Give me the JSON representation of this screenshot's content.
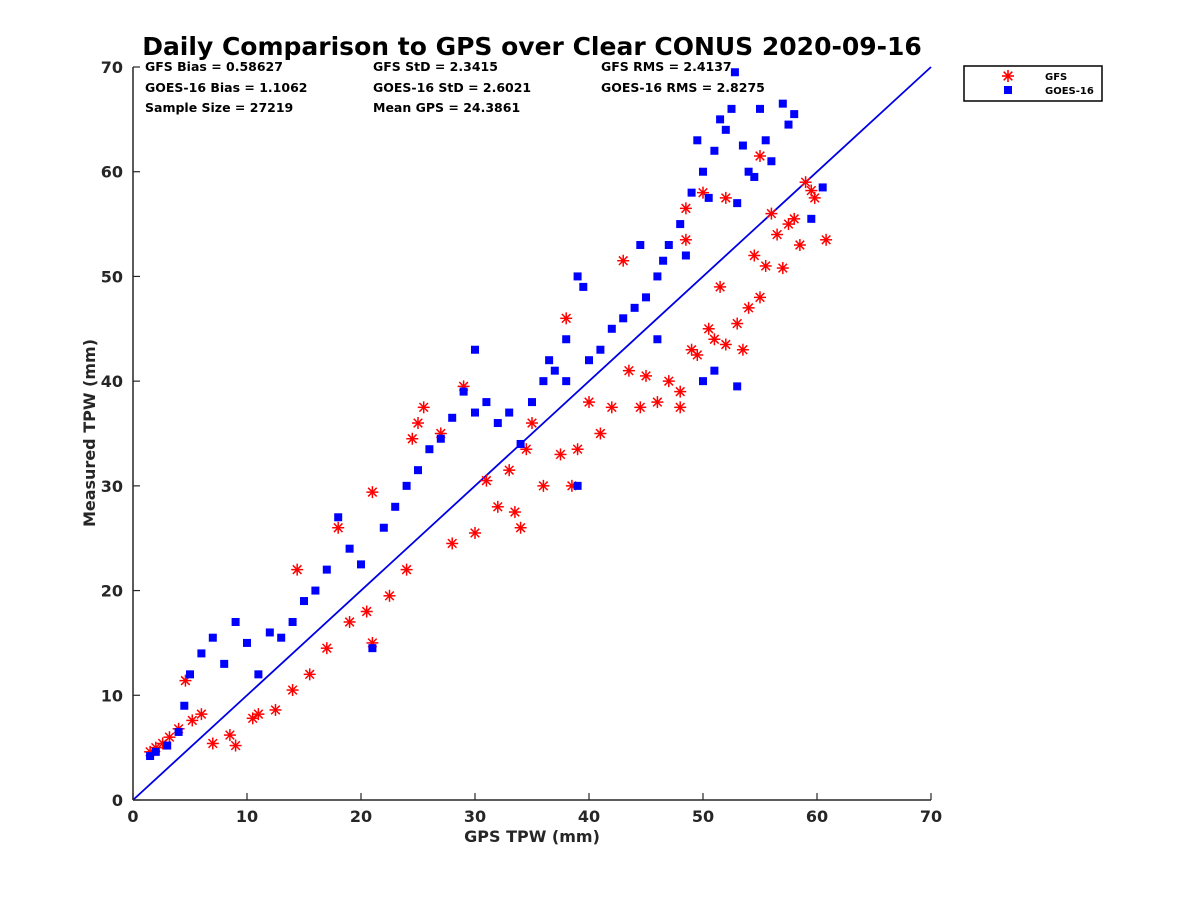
{
  "chart_data": {
    "type": "scatter",
    "title": "Daily Comparison to GPS over Clear CONUS 2020-09-16",
    "xlabel": "GPS TPW (mm)",
    "ylabel": "Measured TPW (mm)",
    "xlim": [
      0,
      70
    ],
    "ylim": [
      0,
      70
    ],
    "xticks": [
      "0",
      "10",
      "20",
      "30",
      "40",
      "50",
      "60",
      "70"
    ],
    "yticks": [
      "0",
      "10",
      "20",
      "30",
      "40",
      "50",
      "60",
      "70"
    ],
    "grid": false,
    "legend_position": "outside-top-right",
    "reference_line": {
      "x": [
        0,
        70
      ],
      "y": [
        0,
        70
      ],
      "color": "#0000e6"
    },
    "stats": [
      [
        "GFS Bias = 0.58627",
        "GFS StD = 2.3415",
        "GFS RMS = 2.4137"
      ],
      [
        "GOES-16 Bias = 1.1062",
        "GOES-16 StD = 2.6021",
        "GOES-16 RMS = 2.8275"
      ],
      [
        "Sample Size = 27219",
        "Mean GPS = 24.3861"
      ]
    ],
    "series": [
      {
        "name": "GFS",
        "marker": "asterisk",
        "color": "#ff0000",
        "points": [
          [
            1.5,
            4.6
          ],
          [
            2.0,
            5.0
          ],
          [
            2.6,
            5.4
          ],
          [
            3.2,
            6.0
          ],
          [
            4.0,
            6.8
          ],
          [
            4.6,
            11.4
          ],
          [
            5.2,
            7.6
          ],
          [
            6.0,
            8.2
          ],
          [
            7.0,
            5.4
          ],
          [
            8.5,
            6.2
          ],
          [
            9.0,
            5.2
          ],
          [
            10.5,
            7.8
          ],
          [
            11.0,
            8.2
          ],
          [
            12.5,
            8.6
          ],
          [
            14.0,
            10.5
          ],
          [
            14.4,
            22.0
          ],
          [
            15.5,
            12.0
          ],
          [
            17.0,
            14.5
          ],
          [
            18.0,
            26.0
          ],
          [
            19.0,
            17.0
          ],
          [
            20.5,
            18.0
          ],
          [
            21.0,
            29.4
          ],
          [
            21.0,
            15.0
          ],
          [
            22.5,
            19.5
          ],
          [
            24.0,
            22.0
          ],
          [
            24.5,
            34.5
          ],
          [
            25.0,
            36.0
          ],
          [
            25.5,
            37.5
          ],
          [
            27.0,
            35.0
          ],
          [
            28.0,
            24.5
          ],
          [
            29.0,
            39.5
          ],
          [
            30.0,
            25.5
          ],
          [
            31.0,
            30.5
          ],
          [
            32.0,
            28.0
          ],
          [
            33.0,
            31.5
          ],
          [
            34.0,
            26.0
          ],
          [
            33.5,
            27.5
          ],
          [
            34.5,
            33.5
          ],
          [
            35.0,
            36.0
          ],
          [
            36.0,
            30.0
          ],
          [
            37.5,
            33.0
          ],
          [
            38.0,
            46.0
          ],
          [
            38.5,
            30.0
          ],
          [
            39.0,
            33.5
          ],
          [
            40.0,
            38.0
          ],
          [
            41.0,
            35.0
          ],
          [
            42.0,
            37.5
          ],
          [
            43.0,
            51.5
          ],
          [
            43.5,
            41.0
          ],
          [
            44.5,
            37.5
          ],
          [
            45.0,
            40.5
          ],
          [
            46.0,
            38.0
          ],
          [
            47.0,
            40.0
          ],
          [
            48.0,
            37.5
          ],
          [
            48.0,
            39.0
          ],
          [
            48.5,
            53.5
          ],
          [
            49.0,
            43.0
          ],
          [
            49.5,
            42.5
          ],
          [
            50.5,
            45.0
          ],
          [
            51.0,
            44.0
          ],
          [
            51.5,
            49.0
          ],
          [
            52.0,
            43.5
          ],
          [
            53.0,
            45.5
          ],
          [
            53.5,
            43.0
          ],
          [
            54.0,
            47.0
          ],
          [
            54.5,
            52.0
          ],
          [
            55.0,
            48.0
          ],
          [
            55.5,
            51.0
          ],
          [
            56.0,
            56.0
          ],
          [
            56.5,
            54.0
          ],
          [
            57.0,
            50.8
          ],
          [
            57.5,
            55.0
          ],
          [
            58.0,
            55.5
          ],
          [
            58.5,
            53.0
          ],
          [
            59.0,
            59.0
          ],
          [
            59.5,
            58.2
          ],
          [
            59.8,
            57.5
          ],
          [
            60.8,
            53.5
          ],
          [
            48.5,
            56.5
          ],
          [
            52.0,
            57.5
          ],
          [
            55.0,
            61.5
          ],
          [
            50.0,
            58.0
          ]
        ]
      },
      {
        "name": "GOES-16",
        "marker": "square",
        "color": "#0000ff",
        "points": [
          [
            1.5,
            4.2
          ],
          [
            2.0,
            4.6
          ],
          [
            3.0,
            5.2
          ],
          [
            4.0,
            6.5
          ],
          [
            4.5,
            9.0
          ],
          [
            5.0,
            12.0
          ],
          [
            6.0,
            14.0
          ],
          [
            7.0,
            15.5
          ],
          [
            8.0,
            13.0
          ],
          [
            9.0,
            17.0
          ],
          [
            10.0,
            15.0
          ],
          [
            11.0,
            12.0
          ],
          [
            12.0,
            16.0
          ],
          [
            13.0,
            15.5
          ],
          [
            14.0,
            17.0
          ],
          [
            15.0,
            19.0
          ],
          [
            16.0,
            20.0
          ],
          [
            17.0,
            22.0
          ],
          [
            18.0,
            27.0
          ],
          [
            19.0,
            24.0
          ],
          [
            20.0,
            22.5
          ],
          [
            21.0,
            14.5
          ],
          [
            22.0,
            26.0
          ],
          [
            23.0,
            28.0
          ],
          [
            24.0,
            30.0
          ],
          [
            25.0,
            31.5
          ],
          [
            26.0,
            33.5
          ],
          [
            27.0,
            34.5
          ],
          [
            28.0,
            36.5
          ],
          [
            29.0,
            39.0
          ],
          [
            30.0,
            43.0
          ],
          [
            30.0,
            37.0
          ],
          [
            31.0,
            38.0
          ],
          [
            32.0,
            36.0
          ],
          [
            33.0,
            37.0
          ],
          [
            34.0,
            34.0
          ],
          [
            35.0,
            38.0
          ],
          [
            36.0,
            40.0
          ],
          [
            36.5,
            42.0
          ],
          [
            37.0,
            41.0
          ],
          [
            38.0,
            44.0
          ],
          [
            38.0,
            40.0
          ],
          [
            39.0,
            30.0
          ],
          [
            39.0,
            50.0
          ],
          [
            39.5,
            49.0
          ],
          [
            40.0,
            42.0
          ],
          [
            41.0,
            43.0
          ],
          [
            42.0,
            45.0
          ],
          [
            43.0,
            46.0
          ],
          [
            44.0,
            47.0
          ],
          [
            44.5,
            53.0
          ],
          [
            45.0,
            48.0
          ],
          [
            46.0,
            50.0
          ],
          [
            46.5,
            51.5
          ],
          [
            47.0,
            53.0
          ],
          [
            48.0,
            55.0
          ],
          [
            48.5,
            52.0
          ],
          [
            49.0,
            58.0
          ],
          [
            49.5,
            63.0
          ],
          [
            50.0,
            60.0
          ],
          [
            50.5,
            57.5
          ],
          [
            51.0,
            62.0
          ],
          [
            51.5,
            65.0
          ],
          [
            52.0,
            64.0
          ],
          [
            52.5,
            66.0
          ],
          [
            52.8,
            69.5
          ],
          [
            53.0,
            39.5
          ],
          [
            53.5,
            62.5
          ],
          [
            54.0,
            60.0
          ],
          [
            54.5,
            59.5
          ],
          [
            55.0,
            66.0
          ],
          [
            55.5,
            63.0
          ],
          [
            56.0,
            61.0
          ],
          [
            57.0,
            66.5
          ],
          [
            57.5,
            64.5
          ],
          [
            58.0,
            65.5
          ],
          [
            59.5,
            55.5
          ],
          [
            60.5,
            58.5
          ],
          [
            53.0,
            57.0
          ],
          [
            51.0,
            41.0
          ],
          [
            50.0,
            40.0
          ],
          [
            46.0,
            44.0
          ]
        ]
      }
    ]
  }
}
